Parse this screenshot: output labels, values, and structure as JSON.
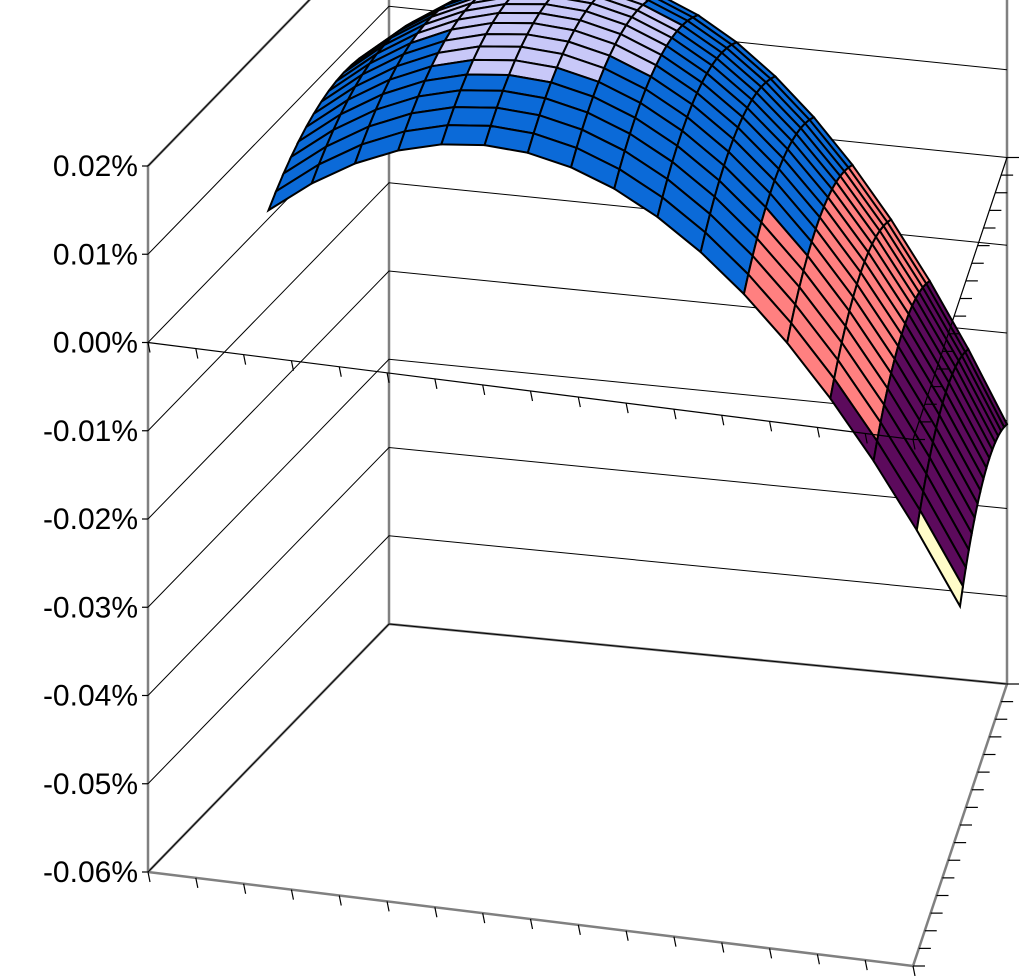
{
  "chart_data": {
    "type": "3d-surface",
    "title": "",
    "xlabel": "",
    "ylabel": "",
    "zlabel": "",
    "zlim": [
      -0.0006,
      0.0002
    ],
    "z_ticks": [
      "0.02%",
      "0.01%",
      "0.00%",
      "-0.01%",
      "-0.02%",
      "-0.03%",
      "-0.04%",
      "-0.05%",
      "-0.06%"
    ],
    "z_tick_values": [
      0.0002,
      0.0001,
      0.0,
      -0.0001,
      -0.0002,
      -0.0003,
      -0.0004,
      -0.0005,
      -0.0006
    ],
    "grid": true,
    "legend": false,
    "surface": {
      "peak_value": 0.00018,
      "min_corner_value": -0.00032,
      "description_grid": "smooth dome-shaped surface, highest near the back-left center and falling toward the front-right corner"
    },
    "colors": {
      "band_above_0.015": "#c8c8f8",
      "band_0.000_to_0.015": "#0b6ad8",
      "band_-0.015_to_0.000": "#ff8080",
      "band_-0.030_to_-0.015": "#5c0a5c",
      "band_-0.045_to_-0.030": "#fffcc8",
      "underside_light": "#c8f8fc",
      "underside_dark": "#7a2050"
    }
  }
}
